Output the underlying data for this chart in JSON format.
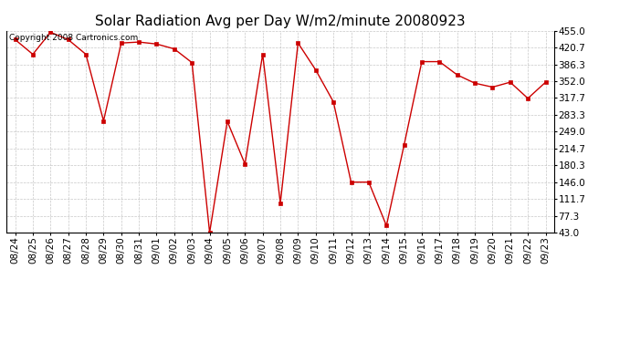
{
  "title": "Solar Radiation Avg per Day W/m2/minute 20080923",
  "copyright": "Copyright 2008 Cartronics.com",
  "x_labels": [
    "08/24",
    "08/25",
    "08/26",
    "08/27",
    "08/28",
    "08/29",
    "08/30",
    "08/31",
    "09/01",
    "09/02",
    "09/03",
    "09/04",
    "09/05",
    "09/06",
    "09/07",
    "09/08",
    "09/09",
    "09/10",
    "09/11",
    "09/12",
    "09/13",
    "09/14",
    "09/15",
    "09/16",
    "09/17",
    "09/18",
    "09/19",
    "09/20",
    "09/21",
    "09/22",
    "09/23"
  ],
  "y_values": [
    437,
    407,
    452,
    437,
    407,
    271,
    430,
    432,
    428,
    418,
    390,
    43,
    270,
    183,
    407,
    103,
    430,
    375,
    310,
    146,
    146,
    57,
    222,
    392,
    392,
    365,
    348,
    340,
    350,
    317,
    350
  ],
  "y_ticks": [
    43.0,
    77.3,
    111.7,
    146.0,
    180.3,
    214.7,
    249.0,
    283.3,
    317.7,
    352.0,
    386.3,
    420.7,
    455.0
  ],
  "line_color": "#cc0000",
  "marker_color": "#cc0000",
  "bg_color": "#ffffff",
  "grid_color": "#b0b0b0",
  "title_fontsize": 11,
  "tick_fontsize": 7.5,
  "copyright_fontsize": 6.5,
  "ylim": [
    43.0,
    455.0
  ]
}
